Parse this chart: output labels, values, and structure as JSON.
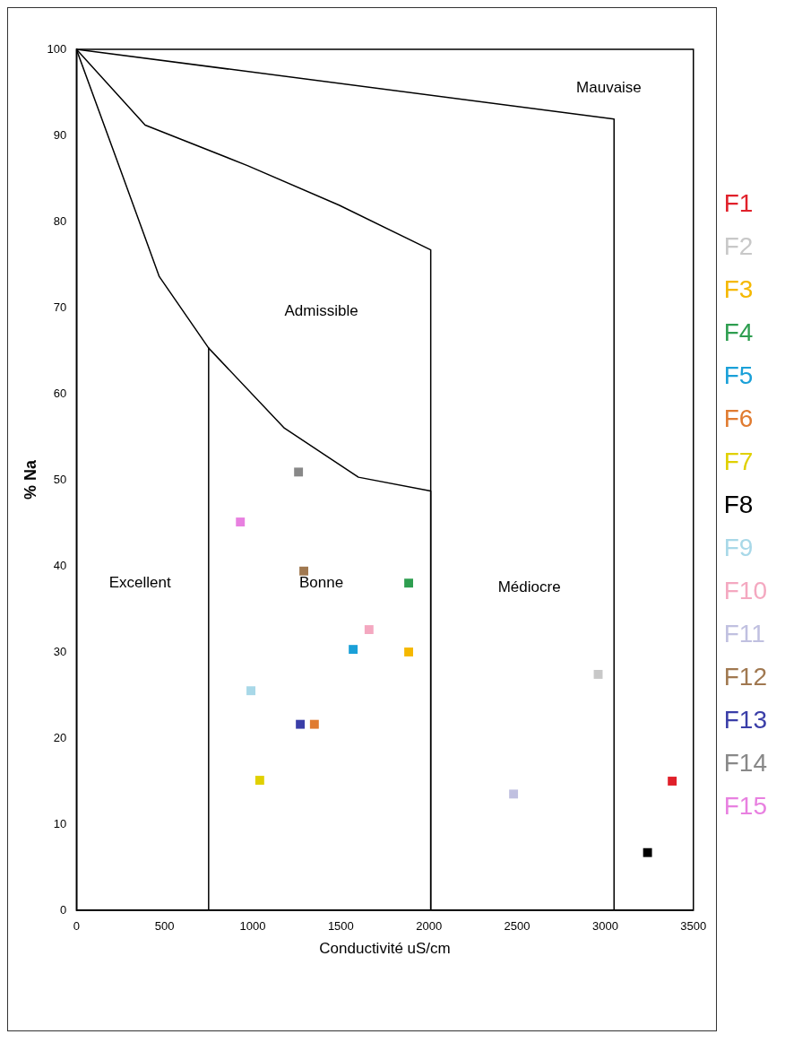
{
  "chart_data": {
    "type": "scatter",
    "xlabel": "Conductivité uS/cm",
    "ylabel": "% Na",
    "xlim": [
      0,
      3500
    ],
    "ylim": [
      0,
      100
    ],
    "xticks": [
      0,
      500,
      1000,
      1500,
      2000,
      2500,
      3000,
      3500
    ],
    "yticks": [
      0,
      10,
      20,
      30,
      40,
      50,
      60,
      70,
      80,
      90,
      100
    ],
    "grid": false,
    "legend": "right",
    "marker": "square",
    "annotations": [
      "Excellent",
      "Bonne",
      "Médiocre",
      "Admissible",
      "Mauvaise"
    ],
    "series": [
      {
        "name": "F1",
        "color": "#e0202a",
        "x": [
          3380
        ],
        "values": [
          15
        ]
      },
      {
        "name": "F2",
        "color": "#c8c8c8",
        "x": [
          2960
        ],
        "values": [
          27.4
        ]
      },
      {
        "name": "F3",
        "color": "#f5b800",
        "x": [
          1885
        ],
        "values": [
          30
        ]
      },
      {
        "name": "F4",
        "color": "#2e9e50",
        "x": [
          1885
        ],
        "values": [
          38
        ]
      },
      {
        "name": "F5",
        "color": "#1aa0d8",
        "x": [
          1570
        ],
        "values": [
          30.3
        ]
      },
      {
        "name": "F6",
        "color": "#e07b30",
        "x": [
          1350
        ],
        "values": [
          21.6
        ]
      },
      {
        "name": "F7",
        "color": "#e0d000",
        "x": [
          1040
        ],
        "values": [
          15.1
        ]
      },
      {
        "name": "F8",
        "color": "#000000",
        "x": [
          3240
        ],
        "values": [
          6.7
        ]
      },
      {
        "name": "F9",
        "color": "#a8d8e8",
        "x": [
          990
        ],
        "values": [
          25.5
        ]
      },
      {
        "name": "F10",
        "color": "#f4a8c0",
        "x": [
          1660
        ],
        "values": [
          32.6
        ]
      },
      {
        "name": "F11",
        "color": "#c0c0e0",
        "x": [
          2480
        ],
        "values": [
          13.5
        ]
      },
      {
        "name": "F12",
        "color": "#a07850",
        "x": [
          1290
        ],
        "values": [
          39.4
        ]
      },
      {
        "name": "F13",
        "color": "#3a3ea8",
        "x": [
          1270
        ],
        "values": [
          21.6
        ]
      },
      {
        "name": "F14",
        "color": "#888888",
        "x": [
          1260
        ],
        "values": [
          50.9
        ]
      },
      {
        "name": "F15",
        "color": "#e880e0",
        "x": [
          930
        ],
        "values": [
          45.1
        ]
      },
      {
        "type": "line",
        "color": "#000000",
        "marker": "none",
        "x": [
          0,
          250,
          470,
          750,
          1180,
          1600,
          2010,
          2010
        ],
        "values": [
          100,
          86,
          73.6,
          65.3,
          56,
          50.3,
          48.7,
          0
        ]
      },
      {
        "type": "line",
        "color": "#000000",
        "marker": "none",
        "x": [
          750,
          750
        ],
        "values": [
          65.3,
          0
        ]
      },
      {
        "type": "line",
        "color": "#000000",
        "marker": "none",
        "x": [
          0,
          390,
          970,
          1490,
          2010,
          2010
        ],
        "values": [
          100,
          91.2,
          86.5,
          81.9,
          76.7,
          0
        ]
      },
      {
        "type": "line",
        "color": "#000000",
        "marker": "none",
        "x": [
          0,
          3050,
          3050
        ],
        "values": [
          100,
          91.9,
          0
        ]
      }
    ]
  }
}
